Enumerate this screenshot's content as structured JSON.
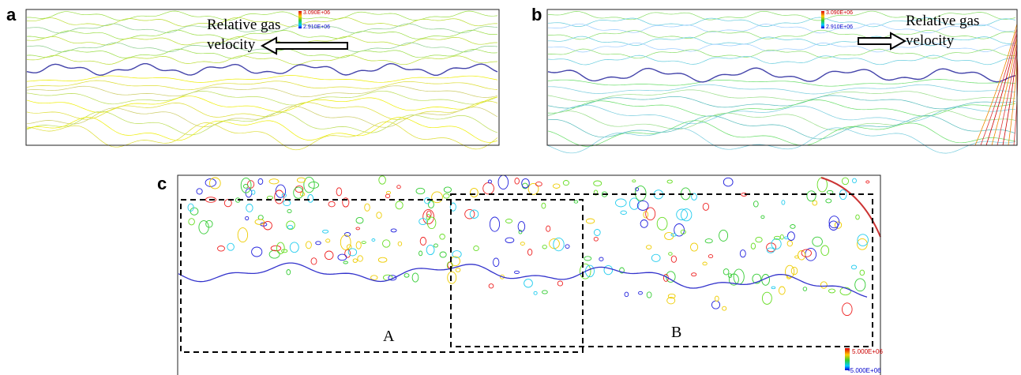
{
  "panels": [
    {
      "label": "a",
      "annotation": [
        "Relative gas",
        "velocity"
      ],
      "colorbar": [
        "3.090E+06",
        "2.910E+06"
      ]
    },
    {
      "label": "b",
      "annotation": [
        "Relative gas",
        "velocity"
      ],
      "colorbar": [
        "3.090E+06",
        "2.910E+06"
      ]
    },
    {
      "label": "c",
      "colorbar": [
        "5.000E+06",
        "-5.000E+06"
      ],
      "regions": [
        "A",
        "B"
      ]
    }
  ]
}
